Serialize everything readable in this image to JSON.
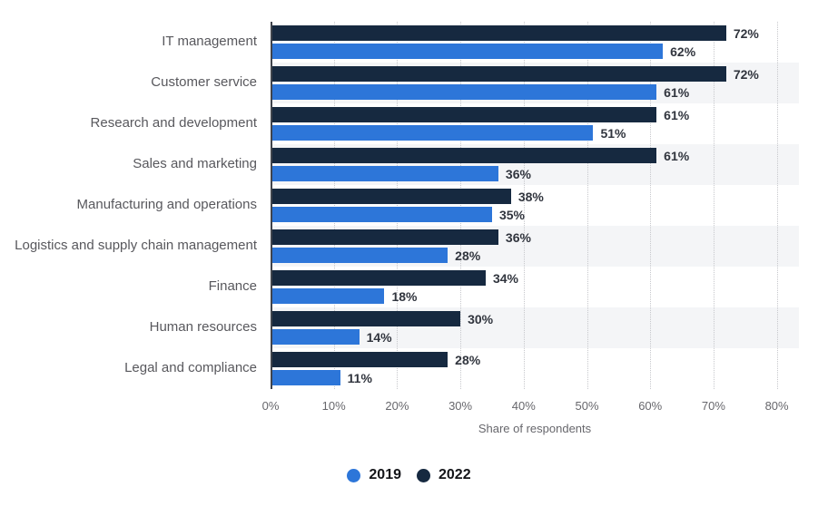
{
  "chart_data": {
    "type": "bar",
    "orientation": "horizontal",
    "categories": [
      "IT management",
      "Customer service",
      "Research and development",
      "Sales and marketing",
      "Manufacturing and operations",
      "Logistics and supply chain management",
      "Finance",
      "Human resources",
      "Legal and compliance"
    ],
    "series": [
      {
        "name": "2019",
        "color": "#2d76d9",
        "values": [
          62,
          61,
          51,
          36,
          35,
          28,
          18,
          14,
          11
        ]
      },
      {
        "name": "2022",
        "color": "#162940",
        "values": [
          72,
          72,
          61,
          61,
          38,
          36,
          34,
          30,
          28
        ]
      }
    ],
    "bar_order_top_to_bottom": [
      "2022",
      "2019"
    ],
    "value_suffix": "%",
    "xlabel": "Share of respondents",
    "xlim": [
      0,
      80
    ],
    "x_ticks": [
      {
        "value": 0,
        "label": "0%"
      },
      {
        "value": 10,
        "label": "10%"
      },
      {
        "value": 20,
        "label": "20%"
      },
      {
        "value": 30,
        "label": "30%"
      },
      {
        "value": 40,
        "label": "40%"
      },
      {
        "value": 50,
        "label": "50%"
      },
      {
        "value": 60,
        "label": "60%"
      },
      {
        "value": 70,
        "label": "70%"
      },
      {
        "value": 80,
        "label": "80%"
      }
    ],
    "grid": {
      "vertical": true,
      "style": "dotted"
    },
    "legend_position": "bottom"
  }
}
